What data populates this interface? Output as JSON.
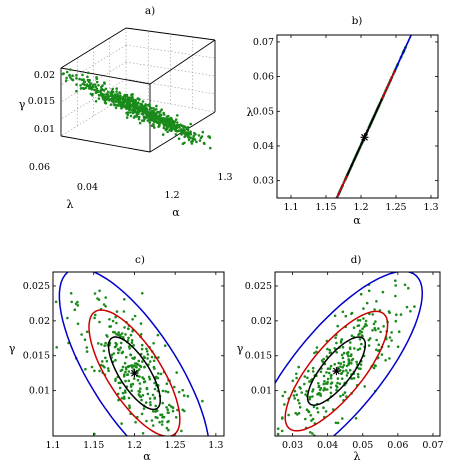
{
  "chart_data": [
    {
      "type": "scatter",
      "title": "a)",
      "projection": "3d",
      "xlabel": "α",
      "ylabel": "λ",
      "zlabel": "γ",
      "xticks": [
        "1.2",
        "1.3"
      ],
      "yticks": [
        "0.04",
        "0.06"
      ],
      "zticks": [
        "0.01",
        "0.015",
        "0.02"
      ],
      "xlim": [
        1.1,
        1.3
      ],
      "ylim": [
        0.03,
        0.07
      ],
      "zlim": [
        0.005,
        0.022
      ],
      "point_color": "#1a8a1a",
      "point_count": 700,
      "grid": true
    },
    {
      "type": "scatter",
      "title": "b)",
      "xlabel": "α",
      "ylabel": "λ",
      "xlim": [
        1.08,
        1.31
      ],
      "ylim": [
        0.025,
        0.072
      ],
      "xticks": [
        "1.1",
        "1.15",
        "1.2",
        "1.25",
        "1.3"
      ],
      "yticks": [
        "0.03",
        "0.04",
        "0.05",
        "0.06",
        "0.07"
      ],
      "center": [
        1.205,
        0.0425
      ],
      "point_color": "#1a8a1a",
      "point_count": 320,
      "ellipses": [
        {
          "color": "#0000cc",
          "semi_major": [
            0.06,
            0.0265
          ],
          "semi_minor": [
            0.045,
            0.02
          ]
        },
        {
          "color": "#cc0000",
          "semi_major": [
            0.035,
            0.0155
          ],
          "semi_minor": [
            0.026,
            0.0115
          ]
        },
        {
          "color": "#000000",
          "semi_major": [
            0.02,
            0.0088
          ],
          "semi_minor": [
            0.015,
            0.0066
          ]
        }
      ]
    },
    {
      "type": "scatter",
      "title": "c)",
      "xlabel": "α",
      "ylabel": "γ",
      "xlim": [
        1.1,
        1.31
      ],
      "ylim": [
        0.0035,
        0.027
      ],
      "xticks": [
        "1.1",
        "1.15",
        "1.2",
        "1.25",
        "1.3"
      ],
      "yticks": [
        "0.01",
        "0.015",
        "0.02",
        "0.025"
      ],
      "center": [
        1.2,
        0.0125
      ],
      "point_color": "#1a8a1a",
      "point_count": 320,
      "ellipses": [
        {
          "color": "#0000cc",
          "semi_major": [
            0.09,
            -0.013
          ],
          "semi_minor": [
            0.02,
            0.0075
          ]
        },
        {
          "color": "#cc0000",
          "semi_major": [
            0.0545,
            -0.0078
          ],
          "semi_minor": [
            0.012,
            0.0046
          ]
        },
        {
          "color": "#000000",
          "semi_major": [
            0.031,
            -0.0045
          ],
          "semi_minor": [
            0.0068,
            0.0026
          ]
        }
      ]
    },
    {
      "type": "scatter",
      "title": "d)",
      "xlabel": "λ",
      "ylabel": "γ",
      "xlim": [
        0.025,
        0.072
      ],
      "ylim": [
        0.0035,
        0.027
      ],
      "xticks": [
        "0.03",
        "0.04",
        "0.05",
        "0.06",
        "0.07"
      ],
      "yticks": [
        "0.01",
        "0.015",
        "0.02",
        "0.025"
      ],
      "center": [
        0.0425,
        0.0128
      ],
      "point_color": "#1a8a1a",
      "point_count": 320,
      "ellipses": [
        {
          "color": "#0000cc",
          "semi_major": [
            0.0235,
            0.0132
          ],
          "semi_minor": [
            -0.0068,
            0.0055
          ]
        },
        {
          "color": "#cc0000",
          "semi_major": [
            0.014,
            0.0079
          ],
          "semi_minor": [
            -0.0041,
            0.0033
          ]
        },
        {
          "color": "#000000",
          "semi_major": [
            0.0079,
            0.0045
          ],
          "semi_minor": [
            -0.0023,
            0.0019
          ]
        }
      ]
    }
  ]
}
